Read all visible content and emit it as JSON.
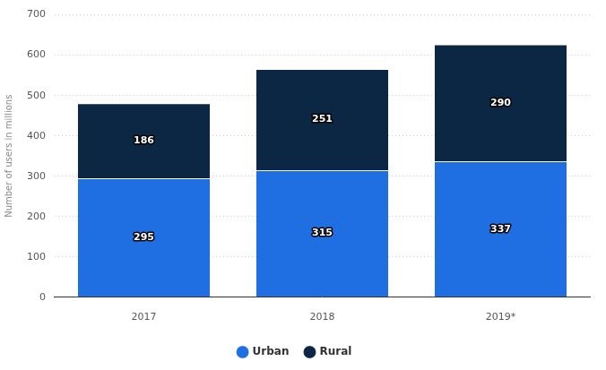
{
  "chart_data": {
    "type": "bar",
    "stacked": true,
    "data_labels": true,
    "grid": true,
    "legend": "bottom",
    "y_label": "Number of users in millions",
    "categories": [
      "2017",
      "2018",
      "2019*"
    ],
    "series": [
      {
        "name": "Urban",
        "color": "#1f6fe3",
        "values": [
          295,
          315,
          337
        ]
      },
      {
        "name": "Rural",
        "color": "#0c2743",
        "values": [
          186,
          251,
          290
        ]
      }
    ],
    "ylim": [
      0,
      700
    ],
    "yticks": [
      0,
      100,
      200,
      300,
      400,
      500,
      600,
      700
    ]
  }
}
